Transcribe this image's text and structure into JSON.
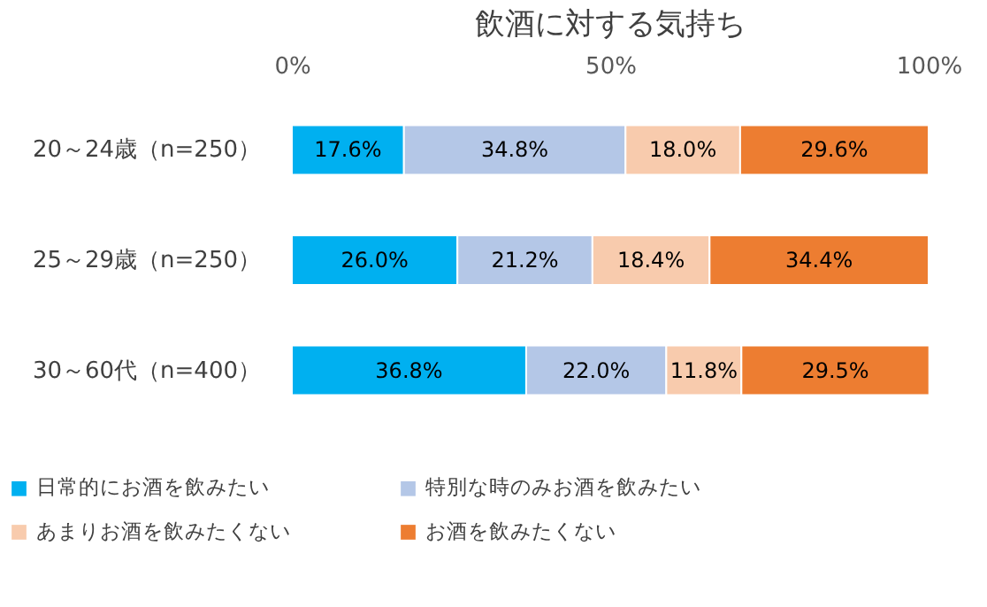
{
  "chart_data": {
    "type": "bar",
    "title": "飲酒に対する気持ち",
    "orientation": "horizontal",
    "stacked": true,
    "categories": [
      "20～24歳（n=250）",
      "25～29歳（n=250）",
      "30～60代（n=400）"
    ],
    "series": [
      {
        "name": "日常的にお酒を飲みたい",
        "color": "#00b0f0",
        "values": [
          17.6,
          26.0,
          36.8
        ],
        "value_labels": [
          "17.6%",
          "26.0%",
          "36.8%"
        ]
      },
      {
        "name": "特別な時のみお酒を飲みたい",
        "color": "#b4c7e7",
        "values": [
          34.8,
          21.2,
          22.0
        ],
        "value_labels": [
          "34.8%",
          "21.2%",
          "22.0%"
        ]
      },
      {
        "name": "あまりお酒を飲みたくない",
        "color": "#f8cbad",
        "values": [
          18.0,
          18.4,
          11.8
        ],
        "value_labels": [
          "18.0%",
          "18.4%",
          "11.8%"
        ]
      },
      {
        "name": "お酒を飲みたくない",
        "color": "#ed7d31",
        "values": [
          29.6,
          34.4,
          29.5
        ],
        "value_labels": [
          "29.6%",
          "34.4%",
          "29.5%"
        ]
      }
    ],
    "xlim": [
      0,
      100
    ],
    "xticks": [
      {
        "value": 0,
        "label": "0%"
      },
      {
        "value": 50,
        "label": "50%"
      },
      {
        "value": 100,
        "label": "100%"
      }
    ],
    "legend": "bottom",
    "grid": false
  }
}
